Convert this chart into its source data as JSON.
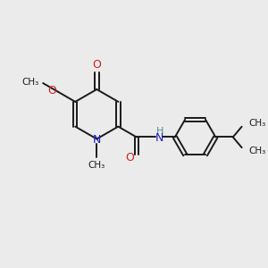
{
  "background_color": "#ebebeb",
  "bond_color": "#1a1a1a",
  "nitrogen_color": "#2020cc",
  "oxygen_color": "#cc2020",
  "text_color": "#1a1a1a",
  "nh_color": "#4a9090",
  "figsize": [
    3.0,
    3.0
  ],
  "dpi": 100,
  "xlim": [
    0,
    10
  ],
  "ylim": [
    0,
    10
  ]
}
